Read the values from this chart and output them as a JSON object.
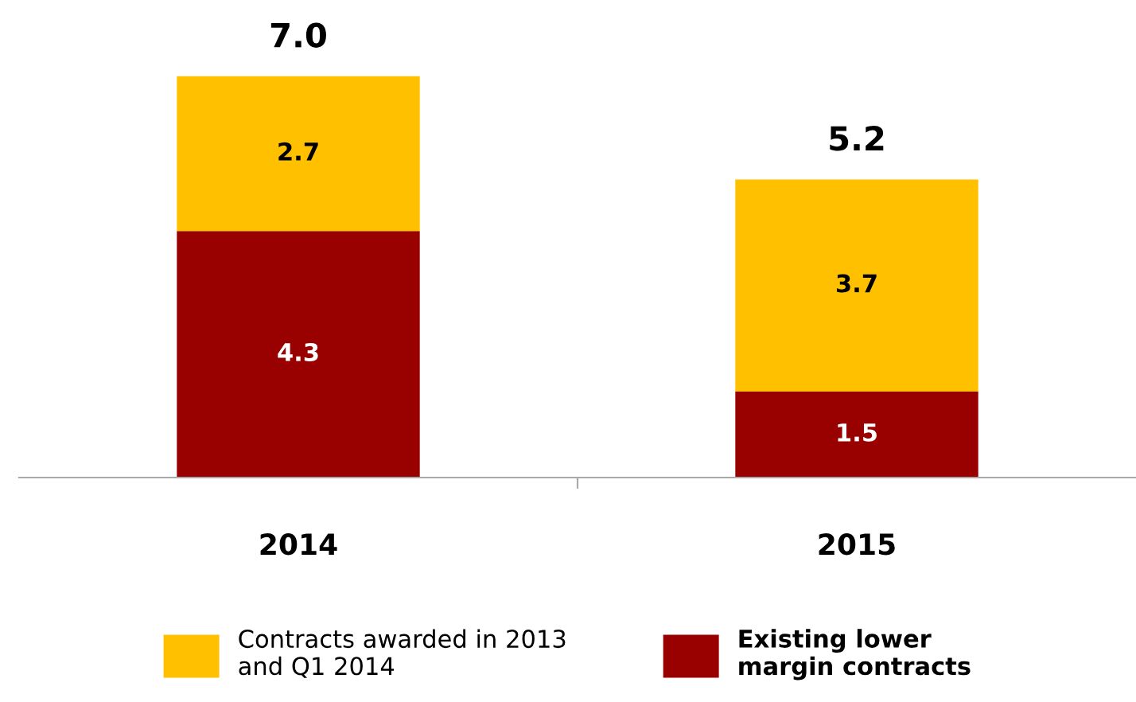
{
  "chart_data": {
    "type": "bar",
    "stacked": true,
    "categories": [
      "2014",
      "2015"
    ],
    "series": [
      {
        "name": "Existing lower margin contracts",
        "color": "#990000",
        "values": [
          4.3,
          1.5
        ]
      },
      {
        "name": "Contracts awarded in 2013 and Q1 2014",
        "color": "#ffc000",
        "values": [
          2.7,
          3.7
        ]
      }
    ],
    "data_labels": true,
    "totals": [
      "7.0",
      "5.2"
    ],
    "legend": "bottom",
    "grid": false
  }
}
